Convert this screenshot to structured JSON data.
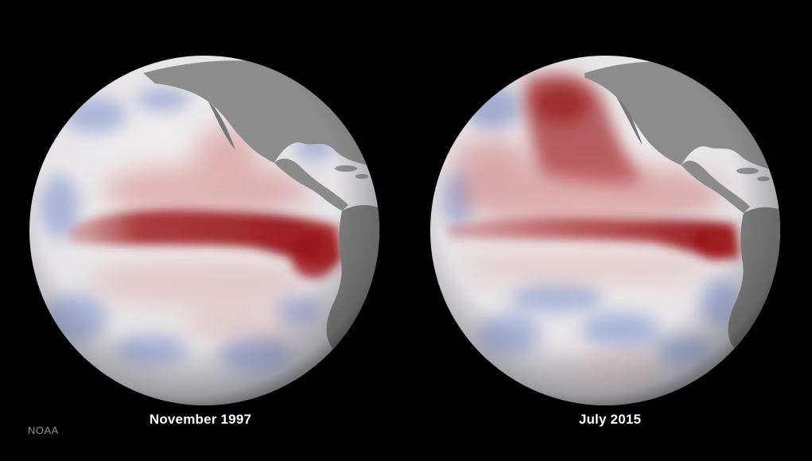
{
  "credit": "NOAA",
  "globes": [
    {
      "label": "November 1997"
    },
    {
      "label": "July 2015"
    }
  ],
  "colors": {
    "background": "#000000",
    "ocean_neutral": "#eeeeee",
    "warm_anomaly": "#9c1a1f",
    "cool_anomaly": "#6f86c4",
    "land": "#8a8a8a",
    "caption_text": "#ffffff",
    "credit_text": "#8f8f8f"
  }
}
